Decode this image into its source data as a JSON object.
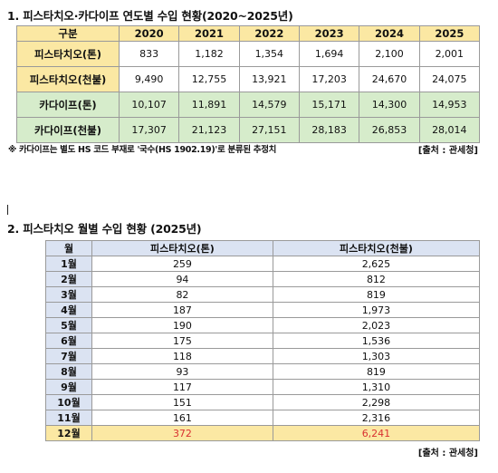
{
  "section1": {
    "title": "1. 피스타치오·카다이프 연도별 수입 현황(2020~2025년)",
    "header": [
      "구분",
      "2020",
      "2021",
      "2022",
      "2023",
      "2024",
      "2025"
    ],
    "rows": [
      {
        "label": "피스타치오(톤)",
        "values": [
          "833",
          "1,182",
          "1,354",
          "1,694",
          "2,100",
          "2,001"
        ],
        "color": "#fbe8a3"
      },
      {
        "label": "피스타치오(천불)",
        "values": [
          "9,490",
          "12,755",
          "13,921",
          "17,203",
          "24,670",
          "24,075"
        ],
        "color": "#fbe8a3"
      },
      {
        "label": "카다이프(톤)",
        "values": [
          "10,107",
          "11,891",
          "14,579",
          "15,171",
          "14,300",
          "14,953"
        ],
        "color": "#d6eccb"
      },
      {
        "label": "카다이프(천불)",
        "values": [
          "17,307",
          "21,123",
          "27,151",
          "28,183",
          "26,853",
          "28,014"
        ],
        "color": "#d6eccb"
      }
    ],
    "note": "※ 카다이프는 별도 HS 코드 부재로 '국수(HS 1902.19)'로 분류된 추정치",
    "source": "[출처 : 관세청]"
  },
  "section2": {
    "title": "2. 피스타치오 월별 수입 현황 (2025년)",
    "header": [
      "월",
      "피스타치오(톤)",
      "피스타치오(천불)"
    ],
    "rows": [
      {
        "month": "1월",
        "ton": "259",
        "usd": "2,625"
      },
      {
        "month": "2월",
        "ton": "94",
        "usd": "812"
      },
      {
        "month": "3월",
        "ton": "82",
        "usd": "819"
      },
      {
        "month": "4월",
        "ton": "187",
        "usd": "1,973"
      },
      {
        "month": "5월",
        "ton": "190",
        "usd": "2,023"
      },
      {
        "month": "6월",
        "ton": "175",
        "usd": "1,536"
      },
      {
        "month": "7월",
        "ton": "118",
        "usd": "1,303"
      },
      {
        "month": "8월",
        "ton": "93",
        "usd": "819"
      },
      {
        "month": "9월",
        "ton": "117",
        "usd": "1,310"
      },
      {
        "month": "10월",
        "ton": "151",
        "usd": "2,298"
      },
      {
        "month": "11월",
        "ton": "161",
        "usd": "2,316"
      },
      {
        "month": "12월",
        "ton": "372",
        "usd": "6,241"
      }
    ],
    "highlight_color": "#d93131",
    "source": "[출처 : 관세청]"
  }
}
